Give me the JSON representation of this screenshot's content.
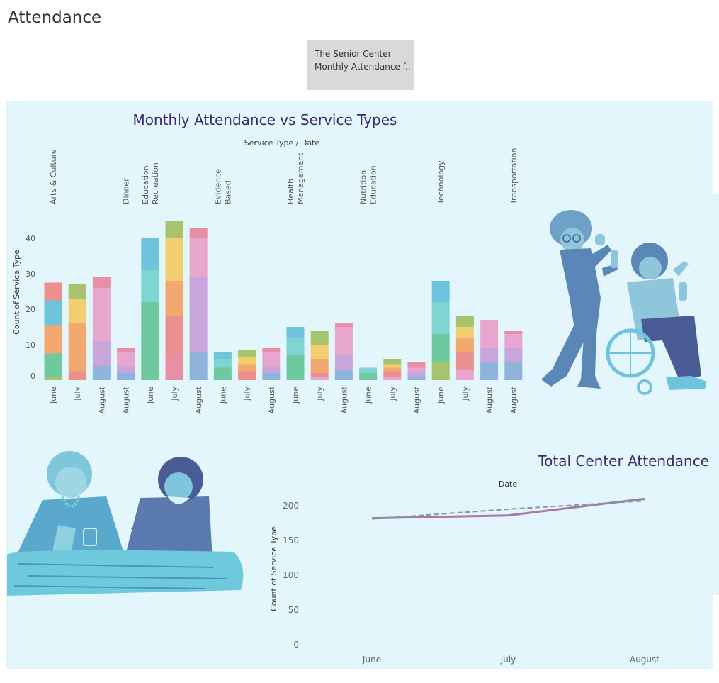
{
  "page": {
    "title": "Attendance",
    "filter_text_line1": "The Senior Center",
    "filter_text_line2": "Monthly Attendance f.."
  },
  "colors": {
    "palette": [
      "#a8c26e",
      "#6ec9a0",
      "#7fd4d4",
      "#6ec4dc",
      "#eb8f8f",
      "#f2a86e",
      "#f2cf6e",
      "#c8a6dc",
      "#e8a6cf",
      "#e88fa6",
      "#8fb4dc",
      "#b5dc8f"
    ],
    "line_actual": "#a878a8",
    "line_trend": "#7f9a9a",
    "title_color": "#3d2a6b"
  },
  "chart_data": [
    {
      "type": "bar",
      "title": "Monthly Attendance vs Service Types",
      "column_header": "Service Type  /  Date",
      "ylabel": "Count of Service Type",
      "ylim": [
        0,
        46
      ],
      "yticks": [
        0,
        10,
        20,
        30,
        40
      ],
      "stacked": true,
      "groups": [
        {
          "name": "Arts & Culture",
          "bars": [
            {
              "date": "June",
              "segments": [
                [
                  0,
                  1
                ],
                [
                  1,
                  6.5
                ],
                [
                  5,
                  8
                ],
                [
                  3,
                  7
                ],
                [
                  4,
                  5
                ]
              ]
            },
            {
              "date": "July",
              "segments": [
                [
                  0,
                  0
                ],
                [
                  4,
                  2.5
                ],
                [
                  5,
                  6.5
                ],
                [
                  5,
                  7
                ],
                [
                  6,
                  7
                ],
                [
                  0,
                  4
                ]
              ]
            },
            {
              "date": "August",
              "segments": [
                [
                  10,
                  4
                ],
                [
                  7,
                  7
                ],
                [
                  8,
                  8
                ],
                [
                  8,
                  7
                ],
                [
                  9,
                  3
                ]
              ]
            }
          ]
        },
        {
          "name": "Dinner",
          "bars": [
            {
              "date": "August",
              "segments": [
                [
                  10,
                  2
                ],
                [
                  7,
                  2
                ],
                [
                  8,
                  2
                ],
                [
                  8,
                  2
                ],
                [
                  9,
                  1
                ]
              ]
            }
          ]
        },
        {
          "name": "Education\nRecreation",
          "bars": [
            {
              "date": "June",
              "segments": [
                [
                  1,
                  10
                ],
                [
                  1,
                  12
                ],
                [
                  2,
                  9
                ],
                [
                  3,
                  9
                ]
              ]
            },
            {
              "date": "July",
              "segments": [
                [
                  9,
                  7
                ],
                [
                  4,
                  11
                ],
                [
                  5,
                  10
                ],
                [
                  6,
                  12
                ],
                [
                  0,
                  5
                ]
              ]
            },
            {
              "date": "August",
              "segments": [
                [
                  10,
                  8
                ],
                [
                  7,
                  10
                ],
                [
                  7,
                  11
                ],
                [
                  8,
                  11
                ],
                [
                  9,
                  3
                ]
              ]
            }
          ]
        },
        {
          "name": "Evidence\nBased",
          "bars": [
            {
              "date": "June",
              "segments": [
                [
                  1,
                  2
                ],
                [
                  1,
                  1.5
                ],
                [
                  2,
                  2.5
                ],
                [
                  3,
                  2
                ]
              ]
            },
            {
              "date": "July",
              "segments": [
                [
                  4,
                  1
                ],
                [
                  4,
                  1.5
                ],
                [
                  5,
                  2
                ],
                [
                  6,
                  2
                ],
                [
                  0,
                  2
                ]
              ]
            },
            {
              "date": "August",
              "segments": [
                [
                  10,
                  2
                ],
                [
                  7,
                  2
                ],
                [
                  8,
                  2
                ],
                [
                  8,
                  2
                ],
                [
                  9,
                  1
                ]
              ]
            }
          ]
        },
        {
          "name": "Health\nManagement",
          "bars": [
            {
              "date": "June",
              "segments": [
                [
                  1,
                  3
                ],
                [
                  1,
                  4
                ],
                [
                  2,
                  5
                ],
                [
                  3,
                  3
                ]
              ]
            },
            {
              "date": "July",
              "segments": [
                [
                  8,
                  1
                ],
                [
                  4,
                  1
                ],
                [
                  5,
                  4
                ],
                [
                  6,
                  4
                ],
                [
                  0,
                  4
                ]
              ]
            },
            {
              "date": "August",
              "segments": [
                [
                  10,
                  3
                ],
                [
                  7,
                  4
                ],
                [
                  8,
                  6
                ],
                [
                  8,
                  2
                ],
                [
                  9,
                  1
                ]
              ]
            }
          ]
        },
        {
          "name": "Nutrition\nEducation",
          "bars": [
            {
              "date": "June",
              "segments": [
                [
                  1,
                  1
                ],
                [
                  1,
                  1
                ],
                [
                  2,
                  1.5
                ]
              ]
            },
            {
              "date": "July",
              "segments": [
                [
                  8,
                  1
                ],
                [
                  4,
                  1.5
                ],
                [
                  5,
                  1
                ],
                [
                  6,
                  1
                ],
                [
                  0,
                  1.5
                ]
              ]
            },
            {
              "date": "August",
              "segments": [
                [
                  10,
                  1
                ],
                [
                  7,
                  1.5
                ],
                [
                  8,
                  1
                ],
                [
                  9,
                  1.5
                ]
              ]
            }
          ]
        },
        {
          "name": "Technology",
          "bars": [
            {
              "date": "June",
              "segments": [
                [
                  0,
                  5
                ],
                [
                  1,
                  8
                ],
                [
                  2,
                  9
                ],
                [
                  3,
                  6
                ]
              ]
            },
            {
              "date": "July",
              "segments": [
                [
                  8,
                  3
                ],
                [
                  4,
                  5
                ],
                [
                  5,
                  4
                ],
                [
                  6,
                  3
                ],
                [
                  0,
                  3
                ]
              ]
            },
            {
              "date": "August",
              "segments": [
                [
                  10,
                  5
                ],
                [
                  7,
                  4
                ],
                [
                  8,
                  3
                ],
                [
                  8,
                  5
                ]
              ]
            }
          ]
        },
        {
          "name": "Transportation",
          "bars": [
            {
              "date": "August",
              "segments": [
                [
                  10,
                  5
                ],
                [
                  7,
                  4
                ],
                [
                  8,
                  3
                ],
                [
                  8,
                  1
                ],
                [
                  9,
                  1
                ]
              ]
            }
          ]
        }
      ]
    },
    {
      "type": "line",
      "title": "Total Center Attendance",
      "column_header": "Date",
      "ylabel": "Count of Service Type",
      "ylim": [
        0,
        210
      ],
      "yticks": [
        0,
        50,
        100,
        150,
        200
      ],
      "x": [
        "June",
        "July",
        "August"
      ],
      "series": [
        {
          "values": [
            182,
            186,
            210
          ]
        },
        {
          "values": [
            181,
            195,
            207
          ]
        }
      ]
    }
  ]
}
